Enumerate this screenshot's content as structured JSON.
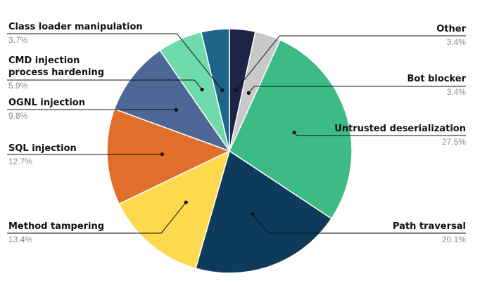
{
  "chart_data": {
    "type": "pie",
    "title": "",
    "start": "top",
    "direction": "clockwise",
    "slices": [
      {
        "label": "Other",
        "value": 3.4,
        "value_label": "3.4%",
        "color": "#1c2447"
      },
      {
        "label": "Bot blocker",
        "value": 3.4,
        "value_label": "3.4%",
        "color": "#c8c8c8"
      },
      {
        "label": "Untrusted deserialization",
        "value": 27.5,
        "value_label": "27.5%",
        "color": "#3dbb85"
      },
      {
        "label": "Path traversal",
        "value": 20.1,
        "value_label": "20.1%",
        "color": "#0e3a5c"
      },
      {
        "label": "Method tampering",
        "value": 13.4,
        "value_label": "13.4%",
        "color": "#fed94e"
      },
      {
        "label": "SQL injection",
        "value": 12.7,
        "value_label": "12.7%",
        "color": "#e06f2b"
      },
      {
        "label": "OGNL injection",
        "value": 9.8,
        "value_label": "9.8%",
        "color": "#4d6796"
      },
      {
        "label": "CMD injection\nprocess hardening",
        "value": 5.9,
        "value_label": "5.9%",
        "color": "#6fdaab"
      },
      {
        "label": "Class loader manipulation",
        "value": 3.7,
        "value_label": "3.7%",
        "color": "#1d6589"
      }
    ]
  }
}
